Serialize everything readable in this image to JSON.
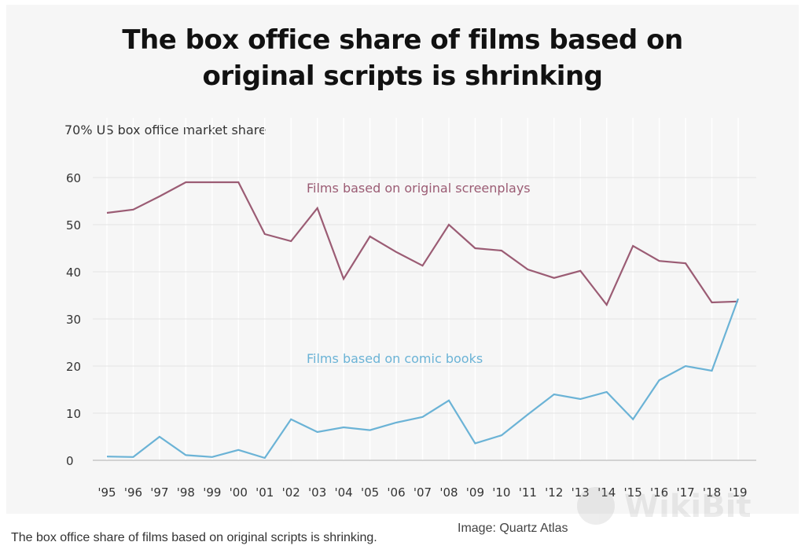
{
  "chart_data": {
    "type": "line",
    "title": "The box office share of films based on original scripts is shrinking",
    "ylabel": "70% US box office market share",
    "ylim": [
      0,
      70
    ],
    "yticks": [
      0,
      10,
      20,
      30,
      40,
      50,
      60
    ],
    "categories": [
      "'95",
      "'96",
      "'97",
      "'98",
      "'99",
      "'00",
      "'01",
      "'02",
      "'03",
      "'04",
      "'05",
      "'06",
      "'07",
      "'08",
      "'09",
      "'10",
      "'11",
      "'12",
      "'13",
      "'14",
      "'15",
      "'16",
      "'17",
      "'18",
      "'19"
    ],
    "grid": true,
    "series": [
      {
        "name": "Films based on original screenplays",
        "color": "#9b5c74",
        "values": [
          52.5,
          53.2,
          56.0,
          59.0,
          59.0,
          59.0,
          48.0,
          46.5,
          53.5,
          38.5,
          47.5,
          44.2,
          41.3,
          50.0,
          45.0,
          44.5,
          40.5,
          38.7,
          40.2,
          33.0,
          45.5,
          42.3,
          41.8,
          33.5,
          33.7
        ]
      },
      {
        "name": "Films based on comic books",
        "color": "#6bb3d6",
        "values": [
          0.8,
          0.7,
          5.0,
          1.1,
          0.7,
          2.2,
          0.5,
          8.7,
          6.0,
          7.0,
          6.4,
          8.0,
          9.2,
          12.7,
          3.6,
          5.3,
          9.7,
          14.0,
          13.0,
          14.5,
          8.7,
          17.0,
          20.0,
          19.0,
          34.3
        ]
      }
    ]
  },
  "caption": "The box office share of films based on original scripts is shrinking.",
  "credit": "Image: Quartz Atlas",
  "watermark": "WikiBit"
}
